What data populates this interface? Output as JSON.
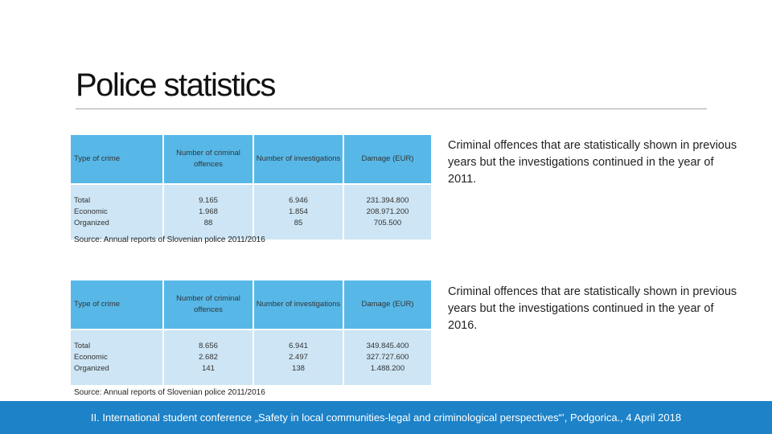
{
  "title": "Police statistics",
  "tables": [
    {
      "headers": [
        "Type of crime",
        "Number of criminal offences",
        "Number of investigations",
        "Damage (EUR)"
      ],
      "rows": [
        [
          "Total",
          "9.165",
          "6.946",
          "231.394.800"
        ],
        [
          "Economic",
          "1.968",
          "1.854",
          "208.971.200"
        ],
        [
          "Organized",
          "88",
          "85",
          "705.500"
        ]
      ],
      "source": "Source: Annual reports of Slovenian police 2011/2016",
      "note": "Criminal offences that are statistically shown in previous years but the investigations continued in the year of 2011."
    },
    {
      "headers": [
        "Type of crime",
        "Number of criminal offences",
        "Number of investigations",
        "Damage (EUR)"
      ],
      "rows": [
        [
          "Total",
          "8.656",
          "6.941",
          "349.845.400"
        ],
        [
          "Economic",
          "2.682",
          "2.497",
          "327.727.600"
        ],
        [
          "Organized",
          "141",
          "138",
          "1.488.200"
        ]
      ],
      "source": "Source: Annual reports of Slovenian police 2011/2016",
      "note": "Criminal offences that are statistically shown in previous years but the investigations continued in the year of 2016."
    }
  ],
  "footer": "II. International student conference „Safety in local communities-legal and criminological perspectives“’, Podgorica., 4 April 2018",
  "colors": {
    "header_cell": "#57b8e8",
    "body_cell": "#cde5f4",
    "footer_bar": "#1d82c8"
  }
}
